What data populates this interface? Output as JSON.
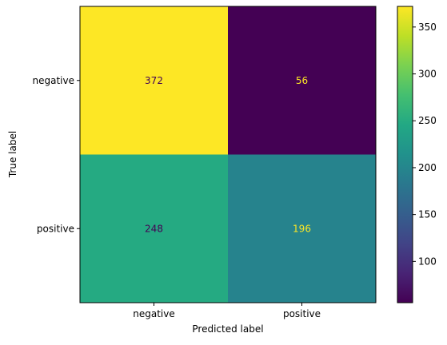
{
  "chart_data": {
    "type": "heatmap",
    "title": "",
    "xlabel": "Predicted label",
    "ylabel": "True label",
    "x_categories": [
      "negative",
      "positive"
    ],
    "y_categories": [
      "negative",
      "positive"
    ],
    "matrix": [
      [
        372,
        56
      ],
      [
        248,
        196
      ]
    ],
    "cell_labels": [
      [
        "372",
        "56"
      ],
      [
        "248",
        "196"
      ]
    ],
    "colormap": "viridis",
    "grid": false,
    "colorbar": {
      "range": [
        56,
        372
      ],
      "ticks": [
        100,
        150,
        200,
        250,
        300,
        350
      ],
      "tick_labels": [
        "100",
        "150",
        "200",
        "250",
        "300",
        "350"
      ],
      "placement": "right"
    },
    "colors": {
      "dark_text": "#440154",
      "light_text": "#fde725"
    }
  }
}
